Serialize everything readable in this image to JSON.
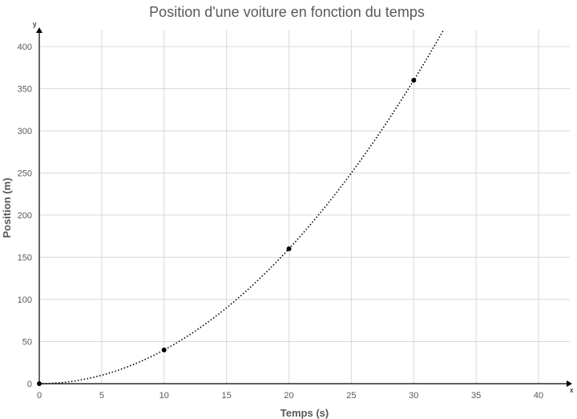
{
  "chart_data": {
    "type": "scatter",
    "title": "Position d'une voiture en fonction du temps",
    "xlabel": "Temps (s)",
    "ylabel": "Position (m)",
    "x_axis_letter": "x",
    "y_axis_letter": "y",
    "xlim": [
      0,
      42.5
    ],
    "ylim": [
      0,
      420
    ],
    "x_ticks": [
      0,
      5,
      10,
      15,
      20,
      25,
      30,
      35,
      40
    ],
    "y_ticks": [
      0,
      50,
      100,
      150,
      200,
      250,
      300,
      350,
      400
    ],
    "grid": true,
    "series": [
      {
        "x": [
          0,
          10,
          20,
          30
        ],
        "y": [
          0,
          40,
          160,
          360
        ],
        "trendline": "polynomial",
        "trendline_coefficient": 0.4
      }
    ]
  }
}
